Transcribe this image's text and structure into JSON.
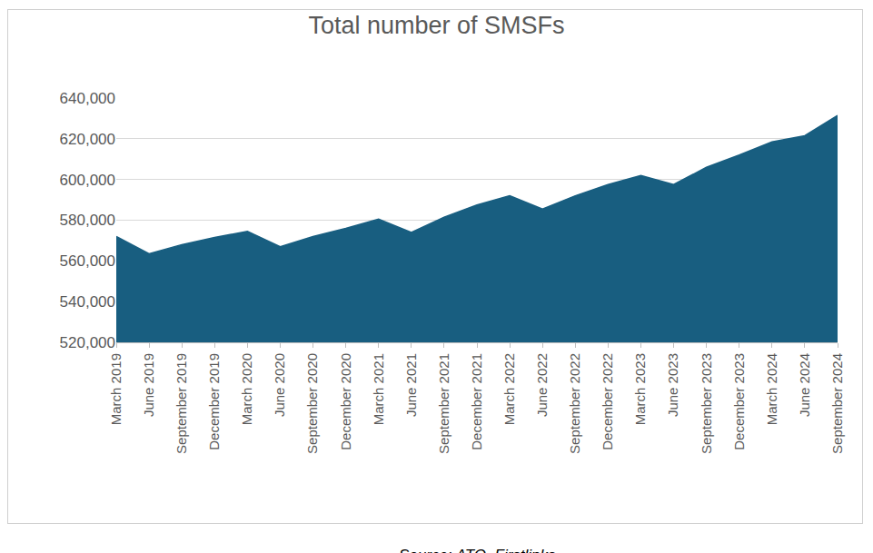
{
  "chart_data": {
    "type": "area",
    "title": "Total number of SMSFs",
    "source": "Source: ATO, Firstlinks",
    "categories": [
      "March 2019",
      "June 2019",
      "September 2019",
      "December 2019",
      "March 2020",
      "June 2020",
      "September 2020",
      "December 2020",
      "March 2021",
      "June 2021",
      "September 2021",
      "December 2021",
      "March 2022",
      "June 2022",
      "September 2022",
      "December 2022",
      "March 2023",
      "June 2023",
      "September 2023",
      "December 2023",
      "March 2024",
      "June 2024",
      "September 2024"
    ],
    "values": [
      572000,
      563500,
      568000,
      571500,
      574500,
      567000,
      572000,
      576000,
      580500,
      574000,
      581500,
      587500,
      592000,
      585500,
      592000,
      597500,
      602000,
      597500,
      606000,
      612000,
      618500,
      621500,
      631500
    ],
    "color": "#185e80",
    "ylim": [
      520000,
      640000
    ],
    "yticks": [
      {
        "value": 520000,
        "label": "520,000"
      },
      {
        "value": 540000,
        "label": "540,000"
      },
      {
        "value": 560000,
        "label": "560,000"
      },
      {
        "value": 580000,
        "label": "580,000"
      },
      {
        "value": 600000,
        "label": "600,000"
      },
      {
        "value": 620000,
        "label": "620,000"
      },
      {
        "value": 640000,
        "label": "640,000"
      }
    ],
    "grid": true
  }
}
